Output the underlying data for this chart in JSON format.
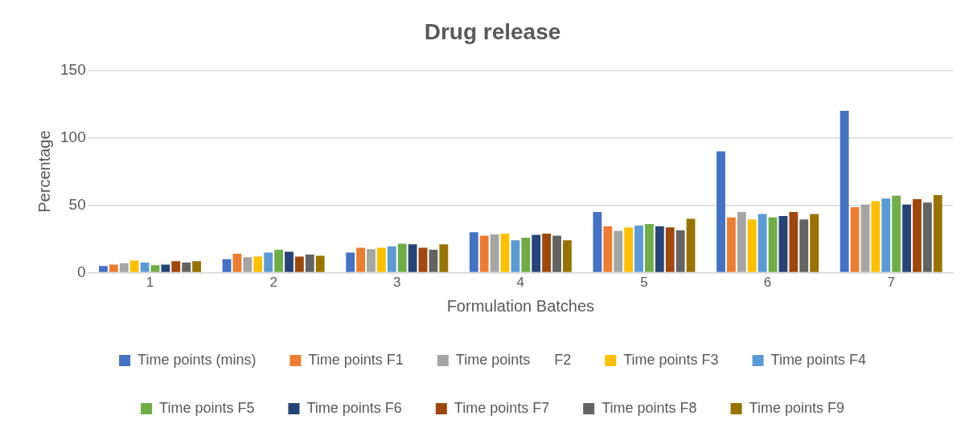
{
  "chart_data": {
    "type": "bar",
    "title": "Drug release",
    "xlabel": "Formulation Batches",
    "ylabel": "Percentage",
    "categories": [
      "1",
      "2",
      "3",
      "4",
      "5",
      "6",
      "7"
    ],
    "series": [
      {
        "name": "Time points (mins)",
        "color": "#4472c4",
        "values": [
          5,
          10,
          15,
          30,
          45,
          90,
          120
        ]
      },
      {
        "name": "Time points F1",
        "color": "#ed7d31",
        "values": [
          6,
          14,
          18.5,
          27.5,
          34.5,
          41,
          48.5
        ]
      },
      {
        "name": "Time points      F2",
        "color": "#a5a5a5",
        "values": [
          7,
          11.5,
          17.5,
          28.5,
          31,
          45,
          50.5
        ]
      },
      {
        "name": "Time points F3",
        "color": "#ffc000",
        "values": [
          9,
          12,
          18.5,
          29,
          33.5,
          39.5,
          53
        ]
      },
      {
        "name": "Time points F4",
        "color": "#5b9bd5",
        "values": [
          7.5,
          15,
          19.5,
          24,
          35,
          43.5,
          55
        ]
      },
      {
        "name": "Time points F5",
        "color": "#70ad47",
        "values": [
          5.5,
          17,
          21.5,
          26,
          36,
          41,
          57
        ]
      },
      {
        "name": "Time points F6",
        "color": "#264478",
        "values": [
          6,
          15.5,
          21,
          28,
          34.5,
          42,
          50.5
        ]
      },
      {
        "name": "Time points F7",
        "color": "#9e480e",
        "values": [
          8.5,
          12,
          18.5,
          29,
          33.5,
          45,
          54.5
        ]
      },
      {
        "name": "Time points F8",
        "color": "#636363",
        "values": [
          7.5,
          13.5,
          17,
          27.5,
          31.5,
          39.5,
          52
        ]
      },
      {
        "name": "Time points F9",
        "color": "#997300",
        "values": [
          8.5,
          12.5,
          21,
          24,
          40,
          43.5,
          57.5
        ]
      }
    ],
    "ylim": [
      0,
      150
    ],
    "yticks": [
      0,
      50,
      100,
      150
    ],
    "grid": "y",
    "legend": "bottom"
  }
}
